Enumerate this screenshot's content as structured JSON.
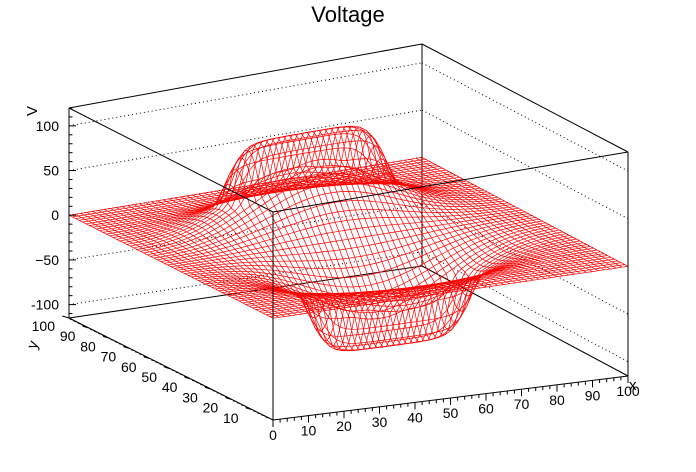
{
  "chart_data": {
    "type": "surface-mesh",
    "title": "Voltage",
    "xlabel": "x",
    "ylabel": "y",
    "zlabel": "V",
    "xlim": [
      0,
      100
    ],
    "ylim": [
      0,
      100
    ],
    "zlim": [
      -115,
      120
    ],
    "x_ticks": [
      "0",
      "10",
      "20",
      "30",
      "40",
      "50",
      "60",
      "70",
      "80",
      "90",
      "100"
    ],
    "y_ticks": [
      "10",
      "20",
      "30",
      "40",
      "50",
      "60",
      "70",
      "80",
      "90",
      "100"
    ],
    "z_ticks": [
      "-100",
      "−50",
      "0",
      "50",
      "100"
    ],
    "mesh_color": "#ff0000",
    "grid_lines": "dotted",
    "description_of_surface": {
      "boundary": "V = 0 on all four edges",
      "positive_plate": {
        "x_range": [
          30,
          70
        ],
        "y_range": [
          65,
          75
        ],
        "value": 100
      },
      "negative_plate": {
        "x_range": [
          30,
          70
        ],
        "y_range": [
          25,
          35
        ],
        "value": -100
      }
    }
  }
}
